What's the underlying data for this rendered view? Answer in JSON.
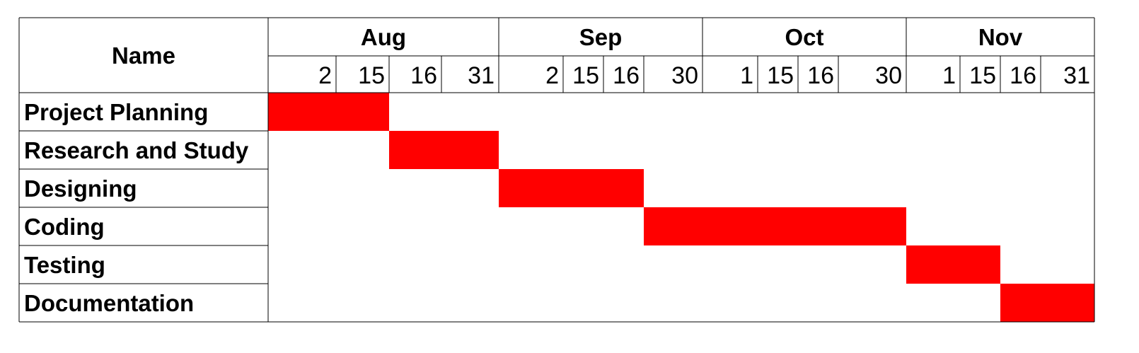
{
  "chart_data": {
    "type": "gantt",
    "header": {
      "name_label": "Name"
    },
    "months": [
      {
        "label": "Aug",
        "days": [
          "2",
          "15",
          "16",
          "31"
        ]
      },
      {
        "label": "Sep",
        "days": [
          "2",
          "15",
          "16",
          "30"
        ]
      },
      {
        "label": "Oct",
        "days": [
          "1",
          "15",
          "16",
          "30"
        ]
      },
      {
        "label": "Nov",
        "days": [
          "1",
          "15",
          "16",
          "31"
        ]
      }
    ],
    "tasks": [
      {
        "name": "Project Planning",
        "start": "Aug 2",
        "end": "Aug 15"
      },
      {
        "name": "Research and Study",
        "start": "Aug 16",
        "end": "Aug 31"
      },
      {
        "name": "Designing",
        "start": "Sep 2",
        "end": "Sep 16"
      },
      {
        "name": "Coding",
        "start": "Sep 30",
        "end": "Oct 30"
      },
      {
        "name": "Testing",
        "start": "Nov 1",
        "end": "Nov 15"
      },
      {
        "name": "Documentation",
        "start": "Nov 16",
        "end": "Nov 31"
      }
    ],
    "bar_color": "#ff0000",
    "grid_color": "#000000"
  }
}
